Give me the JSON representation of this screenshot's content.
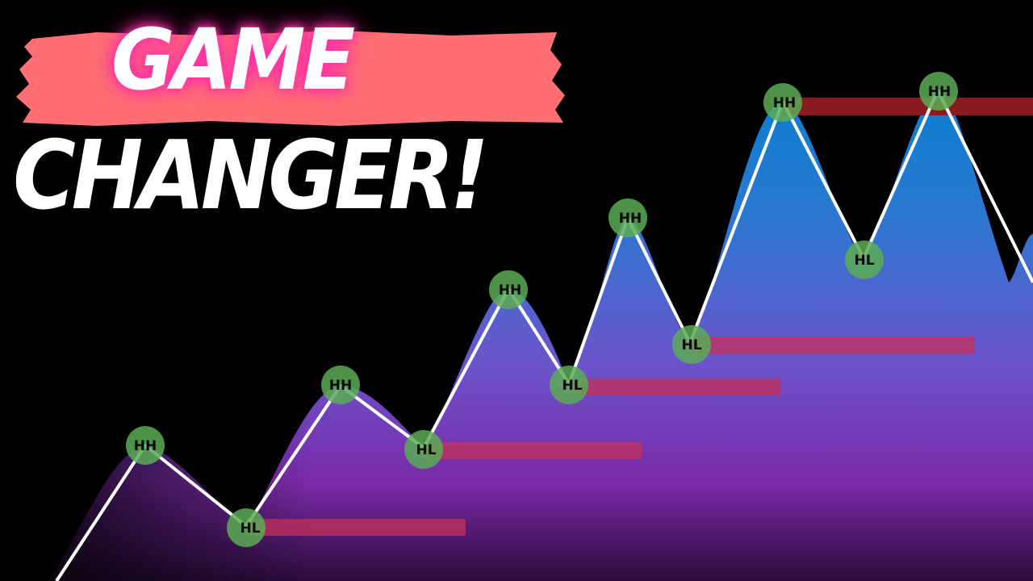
{
  "headline": {
    "line1": "GAME",
    "line2": "CHANGER!"
  },
  "colors": {
    "brush": "#ff6f73",
    "glow": "#ff2fa8",
    "area_top": "#0a7fd0",
    "area_mid": "#6a55cc",
    "area_bottom": "#7a2aa8",
    "zigzag": "#ffffff",
    "marker_fill": "#5aab55",
    "level_line": "#c4305a",
    "resistance_line": "#8a1a1e"
  },
  "markers": [
    {
      "label": "HH"
    },
    {
      "label": "HL"
    },
    {
      "label": "HH"
    },
    {
      "label": "HL"
    },
    {
      "label": "HH"
    },
    {
      "label": "HL"
    },
    {
      "label": "HH"
    },
    {
      "label": "HL"
    },
    {
      "label": "HH"
    },
    {
      "label": "HL"
    },
    {
      "label": "HH"
    }
  ]
}
